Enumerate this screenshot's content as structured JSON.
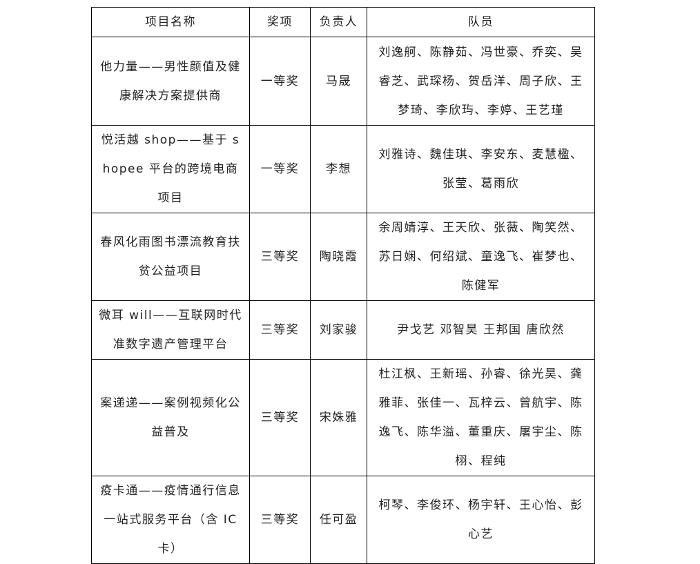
{
  "headers": [
    "项目名称",
    "奖项",
    "负责人",
    "队员"
  ],
  "rows": [
    {
      "project": "他力量——男性颜值及健康解决方案提供商",
      "award": "一等奖",
      "leader": "马晟",
      "members": "刘逸舸、陈静茹、冯世豪、乔奕、吴睿芝、武琛杨、贺岳洋、周子欣、王梦琦、李欣玙、李婷、王艺瑾"
    },
    {
      "project": "悦活越 shop——基于 shopee 平台的跨境电商项目",
      "award": "一等奖",
      "leader": "李想",
      "members": "刘雅诗、魏佳琪、李安东、麦慧楹、张莹、葛雨欣"
    },
    {
      "project": "春风化雨图书漂流教育扶贫公益项目",
      "award": "三等奖",
      "leader": "陶晓霞",
      "members": "余周婧淳、王天欣、张薇、陶笑然、苏日娴、何绍斌、童逸飞、崔梦也、陈健军"
    },
    {
      "project": "微耳 will——互联网时代准数字遗产管理平台",
      "award": "三等奖",
      "leader": "刘家骏",
      "members": "尹戈艺 邓智昊 王邦国 唐欣然"
    },
    {
      "project": "案递递——案例视频化公益普及",
      "award": "三等奖",
      "leader": "宋姝雅",
      "members": "杜江枫、王新瑶、孙睿、徐光昊、龚雅菲、张佳一、瓦梓云、曾航宇、陈逸飞、陈华溢、董重庆、屠宇尘、陈栩、程纯"
    },
    {
      "project": "疫卡通——疫情通行信息一站式服务平台（含 IC 卡）",
      "award": "三等奖",
      "leader": "任可盈",
      "members": "柯琴、李俊环、杨宇轩、王心怡、彭心艺"
    }
  ]
}
